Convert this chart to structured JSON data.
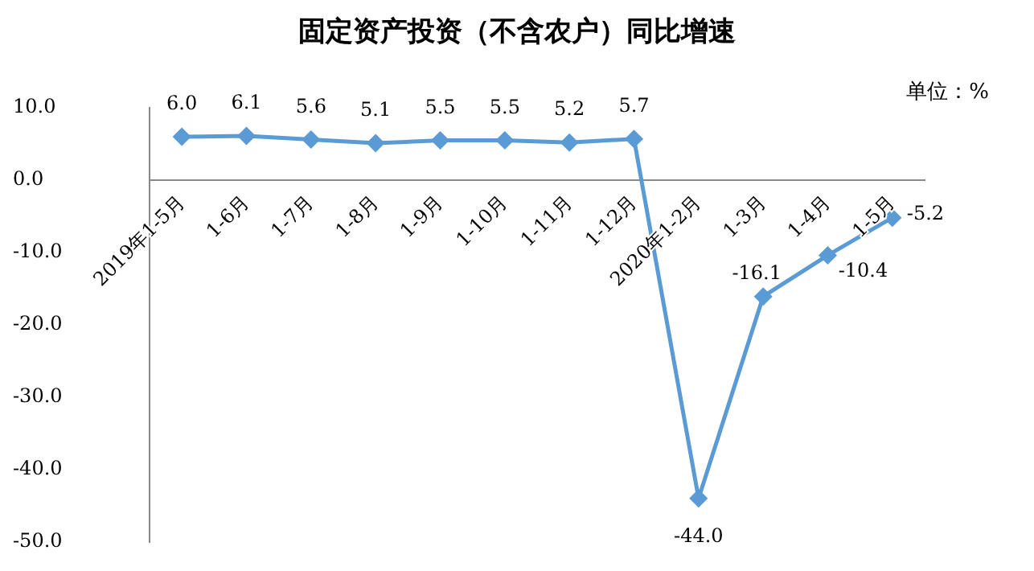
{
  "chart_data": {
    "type": "line",
    "title": "固定资产投资（不含农户）同比增速",
    "annotations": [
      "单位：%"
    ],
    "categories": [
      "2019年1-5月",
      "1-6月",
      "1-7月",
      "1-8月",
      "1-9月",
      "1-10月",
      "1-11月",
      "1-12月",
      "2020年1-2月",
      "1-3月",
      "1-4月",
      "1-5月"
    ],
    "series": [
      {
        "color": "#5b9bd5",
        "values": [
          6.0,
          6.1,
          5.6,
          5.1,
          5.5,
          5.5,
          5.2,
          5.7,
          -44.0,
          -16.1,
          -10.4,
          -5.2
        ],
        "value_labels": [
          "6.0",
          "6.1",
          "5.6",
          "5.1",
          "5.5",
          "5.5",
          "5.2",
          "5.7",
          "-44.0",
          "-16.1",
          "-10.4",
          "-5.2"
        ]
      }
    ],
    "ylim": [
      -50,
      10
    ],
    "yticks": [
      {
        "value": -50,
        "label": "-50.0"
      },
      {
        "value": -40,
        "label": "-40.0"
      },
      {
        "value": -30,
        "label": "-30.0"
      },
      {
        "value": -20,
        "label": "-20.0"
      },
      {
        "value": -10,
        "label": "-10.0"
      },
      {
        "value": 0,
        "label": "0.0"
      },
      {
        "value": 10,
        "label": "10.0"
      }
    ],
    "grid": false,
    "legend": false,
    "marker": "diamond",
    "line_style": "solid"
  }
}
